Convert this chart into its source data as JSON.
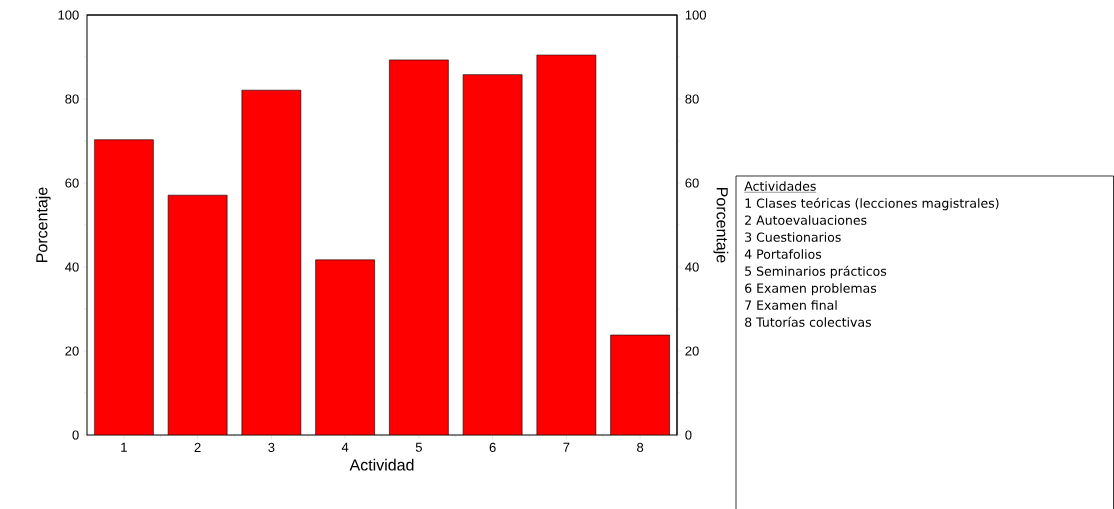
{
  "chart_data": {
    "type": "bar",
    "xlabel": "Actividad",
    "ylabel": "Porcentaje",
    "y2label": "Porcentaje",
    "categories": [
      "1",
      "2",
      "3",
      "4",
      "5",
      "6",
      "7",
      "8"
    ],
    "values": [
      70.3,
      57.1,
      82.1,
      41.7,
      89.3,
      85.8,
      90.5,
      23.8
    ],
    "color": "#ff0000",
    "ylim": [
      0,
      100
    ],
    "yticks": [
      0,
      20,
      40,
      60,
      80,
      100
    ],
    "y2lim": [
      0,
      100
    ],
    "y2ticks": [
      0,
      20,
      40,
      60,
      80,
      100
    ],
    "annotations": [
      "Actividades",
      "1 Clases teóricas (lecciones magistrales)",
      "2 Autoevaluaciones",
      "3 Cuestionarios",
      "4 Portafolios",
      "5 Seminarios prácticos",
      "6 Examen problemas",
      "7 Examen final",
      "8 Tutorías colectivas"
    ]
  }
}
